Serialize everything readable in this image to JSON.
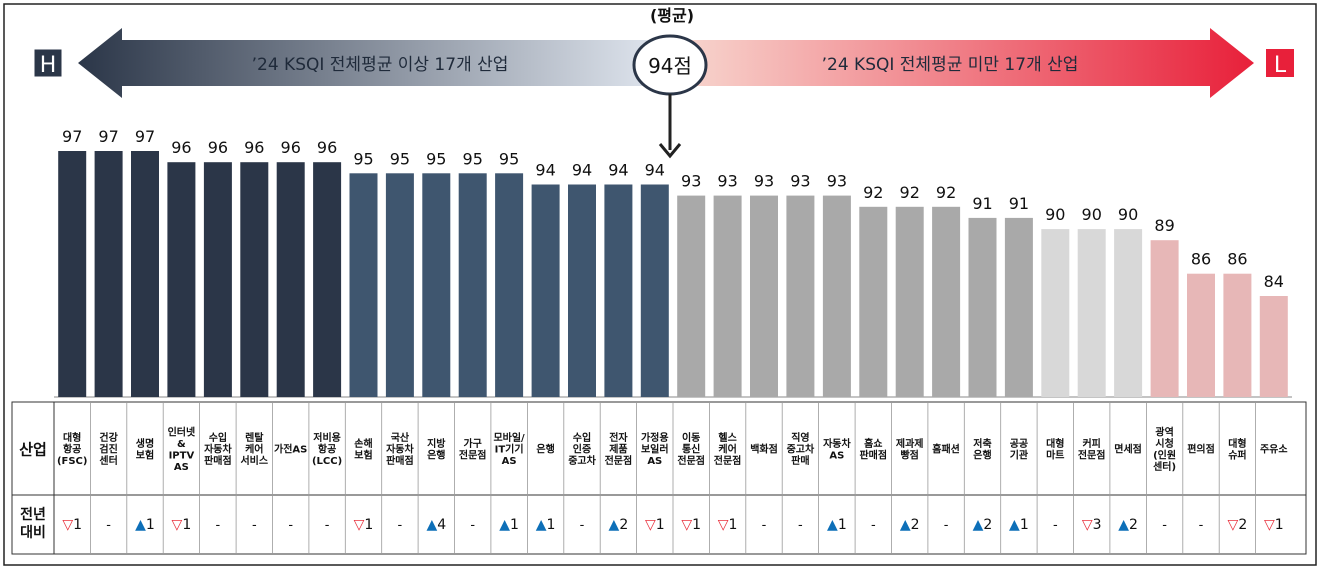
{
  "header": {
    "avg_label": "(평균)",
    "avg_value": "94점",
    "left_badge": "H",
    "right_badge": "L",
    "left_banner": "’24 KSQI 전체평균 이상 17개 산업",
    "right_banner": "’24 KSQI 전체평균 미만 17개 산업"
  },
  "colors": {
    "bar_tiers": [
      "#2b3648",
      "#3f566f",
      "#a9a9a9",
      "#d8d8d8",
      "#e7b7b7"
    ],
    "up": "#0d6fb8",
    "down": "#e8323e",
    "arrow_left_dark": "#2b3648",
    "arrow_left_light": "#dde3ec",
    "arrow_right_light": "#f7d3cc",
    "arrow_right_dark": "#e8203a"
  },
  "table": {
    "row1_header": "산업",
    "row2_header": "전년\n대비",
    "none_mark": "-",
    "up_glyph": "▲",
    "down_glyph": "▽"
  },
  "chart_data": {
    "type": "bar",
    "title": "",
    "ylim": [
      0,
      100
    ],
    "categories": [
      "대형\n항공\n(FSC)",
      "건강\n검진\n센터",
      "생명\n보험",
      "인터넷\n&\nIPTV\nAS",
      "수입\n자동차\n판매점",
      "렌탈\n케어\n서비스",
      "가전AS",
      "저비용\n항공\n(LCC)",
      "손해\n보험",
      "국산\n자동차\n판매점",
      "지방\n은행",
      "가구\n전문점",
      "모바일/\nIT기기\nAS",
      "은행",
      "수입\n인증\n중고차",
      "전자\n제품\n전문점",
      "가정용\n보일러\nAS",
      "이동\n통신\n전문점",
      "헬스\n케어\n전문점",
      "백화점",
      "직영\n중고차\n판매",
      "자동차\nAS",
      "홈쇼\n판매점",
      "제과제\n빵점",
      "홈패션",
      "저축\n은행",
      "공공\n기관",
      "대형\n마트",
      "커피\n전문점",
      "면세점",
      "광역\n시청\n(인원\n센터)",
      "편의점",
      "대형\n슈퍼",
      "주유소"
    ],
    "values": [
      97,
      97,
      97,
      96,
      96,
      96,
      96,
      96,
      95,
      95,
      95,
      95,
      95,
      94,
      94,
      94,
      94,
      93,
      93,
      93,
      93,
      93,
      92,
      92,
      92,
      91,
      91,
      90,
      90,
      90,
      89,
      86,
      86,
      84
    ],
    "color_tier": [
      0,
      0,
      0,
      0,
      0,
      0,
      0,
      0,
      1,
      1,
      1,
      1,
      1,
      1,
      1,
      1,
      1,
      2,
      2,
      2,
      2,
      2,
      2,
      2,
      2,
      2,
      2,
      3,
      3,
      3,
      4,
      4,
      4,
      4
    ],
    "yoy_change": [
      -1,
      0,
      1,
      -1,
      0,
      0,
      0,
      0,
      -1,
      0,
      4,
      0,
      1,
      1,
      0,
      2,
      -1,
      -1,
      -1,
      0,
      0,
      1,
      0,
      2,
      0,
      2,
      1,
      0,
      -3,
      2,
      0,
      0,
      -2,
      -1
    ],
    "average": 94
  }
}
